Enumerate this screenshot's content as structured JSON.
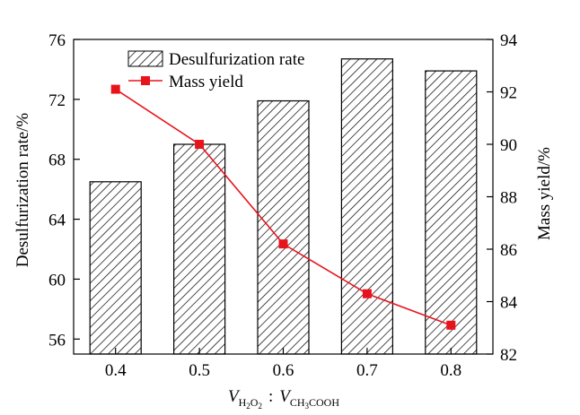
{
  "chart_data": {
    "type": "bar",
    "categories": [
      "0.4",
      "0.5",
      "0.6",
      "0.7",
      "0.8"
    ],
    "series": [
      {
        "name": "Desulfurization rate",
        "type": "bar",
        "axis": "left",
        "values": [
          66.5,
          69.0,
          71.9,
          74.7,
          73.9
        ],
        "style": "diagonal-hatch",
        "color": "#000000"
      },
      {
        "name": "Mass yield",
        "type": "line",
        "axis": "right",
        "values": [
          92.1,
          90.0,
          86.2,
          84.3,
          83.1
        ],
        "marker": "square",
        "color": "#e8141c"
      }
    ],
    "xlabel": {
      "v1": "V",
      "sub1": "H",
      "sub1b": "2",
      "sub1c": "O",
      "sub1d": "2",
      "sep": ":",
      "v2": "V",
      "sub2": "CH",
      "sub2b": "3",
      "sub2c": "COOH"
    },
    "ylabel_left": "Desulfurization rate/%",
    "ylabel_right": "Mass yield/%",
    "ylim_left": [
      55,
      76
    ],
    "yticks_left": [
      "56",
      "60",
      "64",
      "68",
      "72",
      "76"
    ],
    "ylim_right": [
      82,
      94
    ],
    "yticks_right": [
      "82",
      "84",
      "86",
      "88",
      "90",
      "92",
      "94"
    ],
    "grid": false,
    "legend_position": "top-left"
  }
}
